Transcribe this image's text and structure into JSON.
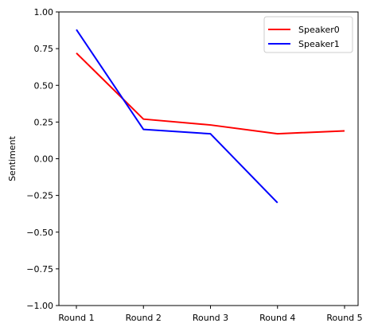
{
  "chart_data": {
    "type": "line",
    "categories": [
      "Round 1",
      "Round 2",
      "Round 3",
      "Round 4",
      "Round 5"
    ],
    "series": [
      {
        "name": "Speaker0",
        "color": "#ff0000",
        "values": [
          0.72,
          0.27,
          0.23,
          0.17,
          0.19
        ]
      },
      {
        "name": "Speaker1",
        "color": "#0000ff",
        "values": [
          0.88,
          0.2,
          0.17,
          -0.3,
          null
        ]
      }
    ],
    "ylabel": "Sentiment",
    "ylim": [
      -1.0,
      1.0
    ],
    "yticks": [
      -1.0,
      -0.75,
      -0.5,
      -0.25,
      0.0,
      0.25,
      0.5,
      0.75,
      1.0
    ],
    "ytick_labels": [
      "−1.00",
      "−0.75",
      "−0.50",
      "−0.25",
      "0.00",
      "0.25",
      "0.50",
      "0.75",
      "1.00"
    ],
    "grid": false,
    "legend": "top-right"
  }
}
